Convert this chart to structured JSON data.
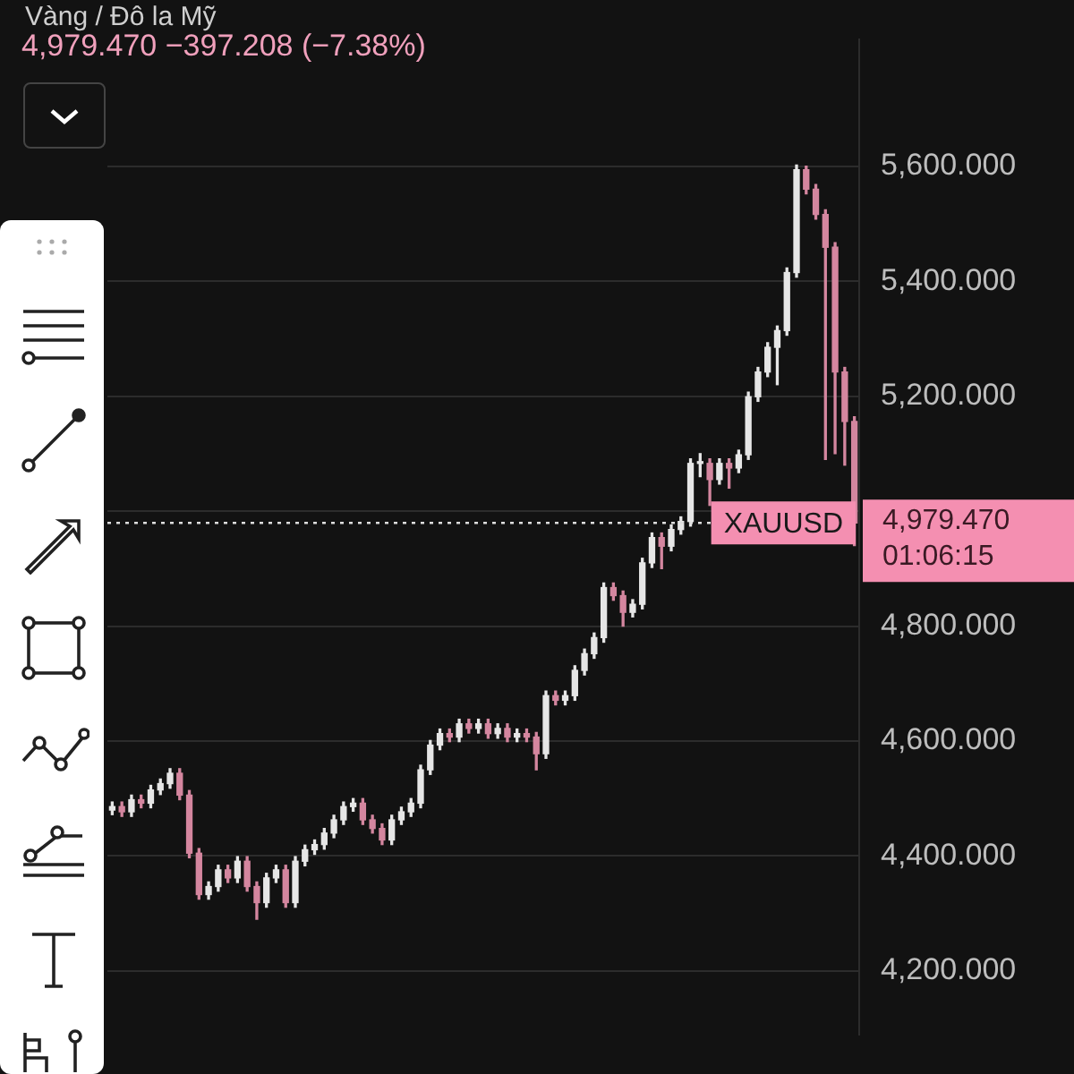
{
  "chart_data": {
    "type": "candlestick",
    "title": "Vàng / Đô la Mỹ",
    "subtitle": "4,979.470  −397.208 (−7.38%)",
    "categories": [
      null,
      null,
      null,
      null,
      null,
      null,
      null,
      null,
      null,
      null,
      null,
      null,
      null,
      null,
      null,
      null,
      null,
      null,
      null,
      null,
      null,
      null,
      null,
      null,
      null,
      null,
      null,
      null,
      null,
      null,
      null,
      null,
      null,
      null,
      null,
      null,
      null,
      null,
      null,
      null,
      null,
      null,
      null,
      null,
      null,
      null,
      null,
      null,
      null,
      null,
      null,
      null,
      null,
      null,
      null,
      null,
      null,
      null,
      null,
      null,
      null,
      null,
      null,
      null,
      null,
      null,
      null,
      null,
      null,
      null,
      null,
      null,
      null,
      null,
      null,
      null,
      null,
      null
    ],
    "ohlc": [
      [
        4480,
        4494,
        4472,
        4486
      ],
      [
        4486,
        4494,
        4469,
        4477
      ],
      [
        4477,
        4506,
        4469,
        4498
      ],
      [
        4498,
        4506,
        4484,
        4492
      ],
      [
        4492,
        4523,
        4484,
        4515
      ],
      [
        4515,
        4534,
        4507,
        4526
      ],
      [
        4526,
        4552,
        4518,
        4544
      ],
      [
        4544,
        4552,
        4498,
        4506
      ],
      [
        4506,
        4514,
        4397,
        4405
      ],
      [
        4405,
        4413,
        4325,
        4333
      ],
      [
        4333,
        4355,
        4325,
        4347
      ],
      [
        4347,
        4384,
        4339,
        4376
      ],
      [
        4376,
        4384,
        4354,
        4362
      ],
      [
        4362,
        4399,
        4354,
        4391
      ],
      [
        4391,
        4399,
        4339,
        4347
      ],
      [
        4347,
        4355,
        4290,
        4319
      ],
      [
        4319,
        4370,
        4311,
        4362
      ],
      [
        4362,
        4384,
        4354,
        4376
      ],
      [
        4376,
        4384,
        4311,
        4319
      ],
      [
        4319,
        4399,
        4311,
        4391
      ],
      [
        4391,
        4419,
        4383,
        4411
      ],
      [
        4411,
        4428,
        4403,
        4420
      ],
      [
        4420,
        4448,
        4412,
        4440
      ],
      [
        4440,
        4471,
        4432,
        4463
      ],
      [
        4463,
        4494,
        4455,
        4486
      ],
      [
        4486,
        4500,
        4478,
        4492
      ],
      [
        4492,
        4500,
        4455,
        4463
      ],
      [
        4463,
        4471,
        4440,
        4448
      ],
      [
        4448,
        4456,
        4420,
        4428
      ],
      [
        4428,
        4471,
        4420,
        4463
      ],
      [
        4463,
        4485,
        4455,
        4477
      ],
      [
        4477,
        4500,
        4469,
        4492
      ],
      [
        4492,
        4558,
        4484,
        4550
      ],
      [
        4550,
        4601,
        4542,
        4593
      ],
      [
        4593,
        4621,
        4585,
        4613
      ],
      [
        4613,
        4621,
        4599,
        4607
      ],
      [
        4607,
        4638,
        4599,
        4630
      ],
      [
        4630,
        4638,
        4614,
        4622
      ],
      [
        4622,
        4638,
        4614,
        4630
      ],
      [
        4630,
        4638,
        4605,
        4613
      ],
      [
        4613,
        4630,
        4605,
        4622
      ],
      [
        4622,
        4630,
        4599,
        4607
      ],
      [
        4607,
        4621,
        4599,
        4613
      ],
      [
        4613,
        4621,
        4599,
        4607
      ],
      [
        4607,
        4615,
        4550,
        4578
      ],
      [
        4578,
        4687,
        4570,
        4679
      ],
      [
        4679,
        4687,
        4663,
        4671
      ],
      [
        4671,
        4687,
        4663,
        4679
      ],
      [
        4679,
        4731,
        4671,
        4723
      ],
      [
        4723,
        4760,
        4715,
        4752
      ],
      [
        4752,
        4788,
        4744,
        4780
      ],
      [
        4780,
        4875,
        4772,
        4867
      ],
      [
        4867,
        4875,
        4845,
        4853
      ],
      [
        4853,
        4861,
        4800,
        4824
      ],
      [
        4824,
        4846,
        4816,
        4838
      ],
      [
        4838,
        4918,
        4830,
        4910
      ],
      [
        4910,
        4962,
        4902,
        4954
      ],
      [
        4954,
        4962,
        4900,
        4939
      ],
      [
        4939,
        4976,
        4931,
        4968
      ],
      [
        4968,
        4990,
        4960,
        4982
      ],
      [
        4982,
        5091,
        4974,
        5083
      ],
      [
        5083,
        5100,
        5060,
        5083
      ],
      [
        5083,
        5091,
        5010,
        5055
      ],
      [
        5055,
        5091,
        5047,
        5083
      ],
      [
        5083,
        5091,
        5040,
        5075
      ],
      [
        5075,
        5106,
        5067,
        5098
      ],
      [
        5098,
        5207,
        5090,
        5199
      ],
      [
        5199,
        5250,
        5191,
        5242
      ],
      [
        5242,
        5293,
        5234,
        5285
      ],
      [
        5285,
        5322,
        5220,
        5314
      ],
      [
        5314,
        5423,
        5306,
        5415
      ],
      [
        5415,
        5602,
        5407,
        5594
      ],
      [
        5594,
        5600,
        5552,
        5560
      ],
      [
        5560,
        5568,
        5508,
        5516
      ],
      [
        5516,
        5524,
        5090,
        5459
      ],
      [
        5459,
        5467,
        5100,
        5242
      ],
      [
        5242,
        5250,
        5080,
        5156
      ],
      [
        5156,
        5164,
        4940,
        4979.47
      ]
    ],
    "colors": [
      "#e6e6e6",
      "#d4869f",
      "#e6e6e6",
      "#d4869f",
      "#e6e6e6",
      "#e6e6e6",
      "#e6e6e6",
      "#d4869f",
      "#d4869f",
      "#d4869f",
      "#e6e6e6",
      "#e6e6e6",
      "#d4869f",
      "#e6e6e6",
      "#d4869f",
      "#d4869f",
      "#e6e6e6",
      "#e6e6e6",
      "#d4869f",
      "#e6e6e6",
      "#e6e6e6",
      "#e6e6e6",
      "#e6e6e6",
      "#e6e6e6",
      "#e6e6e6",
      "#e6e6e6",
      "#d4869f",
      "#d4869f",
      "#d4869f",
      "#e6e6e6",
      "#e6e6e6",
      "#e6e6e6",
      "#e6e6e6",
      "#e6e6e6",
      "#e6e6e6",
      "#d4869f",
      "#e6e6e6",
      "#d4869f",
      "#e6e6e6",
      "#d4869f",
      "#e6e6e6",
      "#d4869f",
      "#e6e6e6",
      "#d4869f",
      "#d4869f",
      "#e6e6e6",
      "#d4869f",
      "#e6e6e6",
      "#e6e6e6",
      "#e6e6e6",
      "#e6e6e6",
      "#e6e6e6",
      "#d4869f",
      "#d4869f",
      "#e6e6e6",
      "#e6e6e6",
      "#e6e6e6",
      "#d4869f",
      "#e6e6e6",
      "#e6e6e6",
      "#e6e6e6",
      "#e6e6e6",
      "#d4869f",
      "#e6e6e6",
      "#d4869f",
      "#e6e6e6",
      "#e6e6e6",
      "#e6e6e6",
      "#e6e6e6",
      "#e6e6e6",
      "#e6e6e6",
      "#e6e6e6",
      "#d4869f",
      "#d4869f",
      "#d4869f",
      "#d4869f",
      "#d4869f",
      "#d4869f"
    ],
    "ylim": [
      4090,
      5820
    ],
    "yticks": [
      {
        "value": 4200,
        "label": "4,200.000"
      },
      {
        "value": 4400,
        "label": "4,400.000"
      },
      {
        "value": 4600,
        "label": "4,600.000"
      },
      {
        "value": 4800,
        "label": "4,800.000"
      },
      {
        "value": 5000,
        "label": null
      },
      {
        "value": 5200,
        "label": "5,200.000"
      },
      {
        "value": 5400,
        "label": "5,400.000"
      },
      {
        "value": 5600,
        "label": "5,600.000"
      }
    ],
    "grid": "y",
    "ref_lines": [
      {
        "axis": "y",
        "value": 4979.47,
        "label": "XAUUSD",
        "color": "#dddddd",
        "line_style": "dotted"
      }
    ],
    "annotations": [
      "4,979.470",
      "01:06:15"
    ]
  }
}
